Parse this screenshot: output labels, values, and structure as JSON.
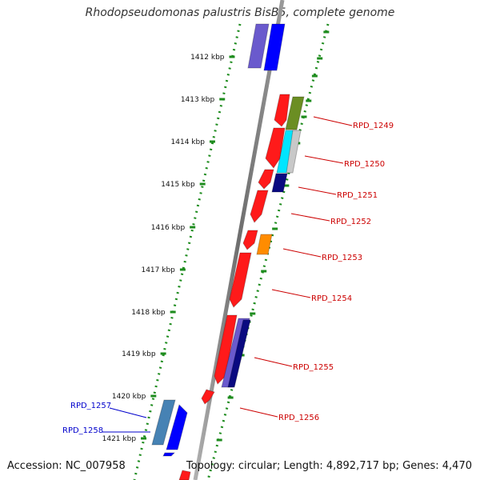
{
  "title": "Rhodopseudomonas palustris BisB5, complete genome",
  "accession": "Accession: NC_007958",
  "topology": "Topology: circular; Length: 4,892,717 bp; Genes: 4,470",
  "kbp_labels": [
    "1412 kbp",
    "1413 kbp",
    "1414 kbp",
    "1415 kbp",
    "1416 kbp",
    "1417 kbp",
    "1418 kbp",
    "1419 kbp",
    "1420 kbp",
    "1421 kbp"
  ],
  "gene_labels_right": [
    "RPD_1249",
    "RPD_1250",
    "RPD_1251",
    "RPD_1252",
    "RPD_1253",
    "RPD_1254",
    "RPD_1255",
    "RPD_1256"
  ],
  "gene_labels_left": [
    "RPD_1257",
    "RPD_1258"
  ],
  "colors": {
    "backbone": "#8c8c8c",
    "scale_ticks": "#1e8c1e",
    "gene_red": "#ff1a1a",
    "gene_blue": "#0000ff",
    "gene_navy": "#0a0a80",
    "gene_slate": "#6a5acd",
    "gene_olive": "#6b8e23",
    "gene_cyan": "#00e5ff",
    "gene_orange": "#ff8c00",
    "gene_steel": "#4682b4",
    "label_right": "#cc0000",
    "label_left": "#0000cc"
  }
}
